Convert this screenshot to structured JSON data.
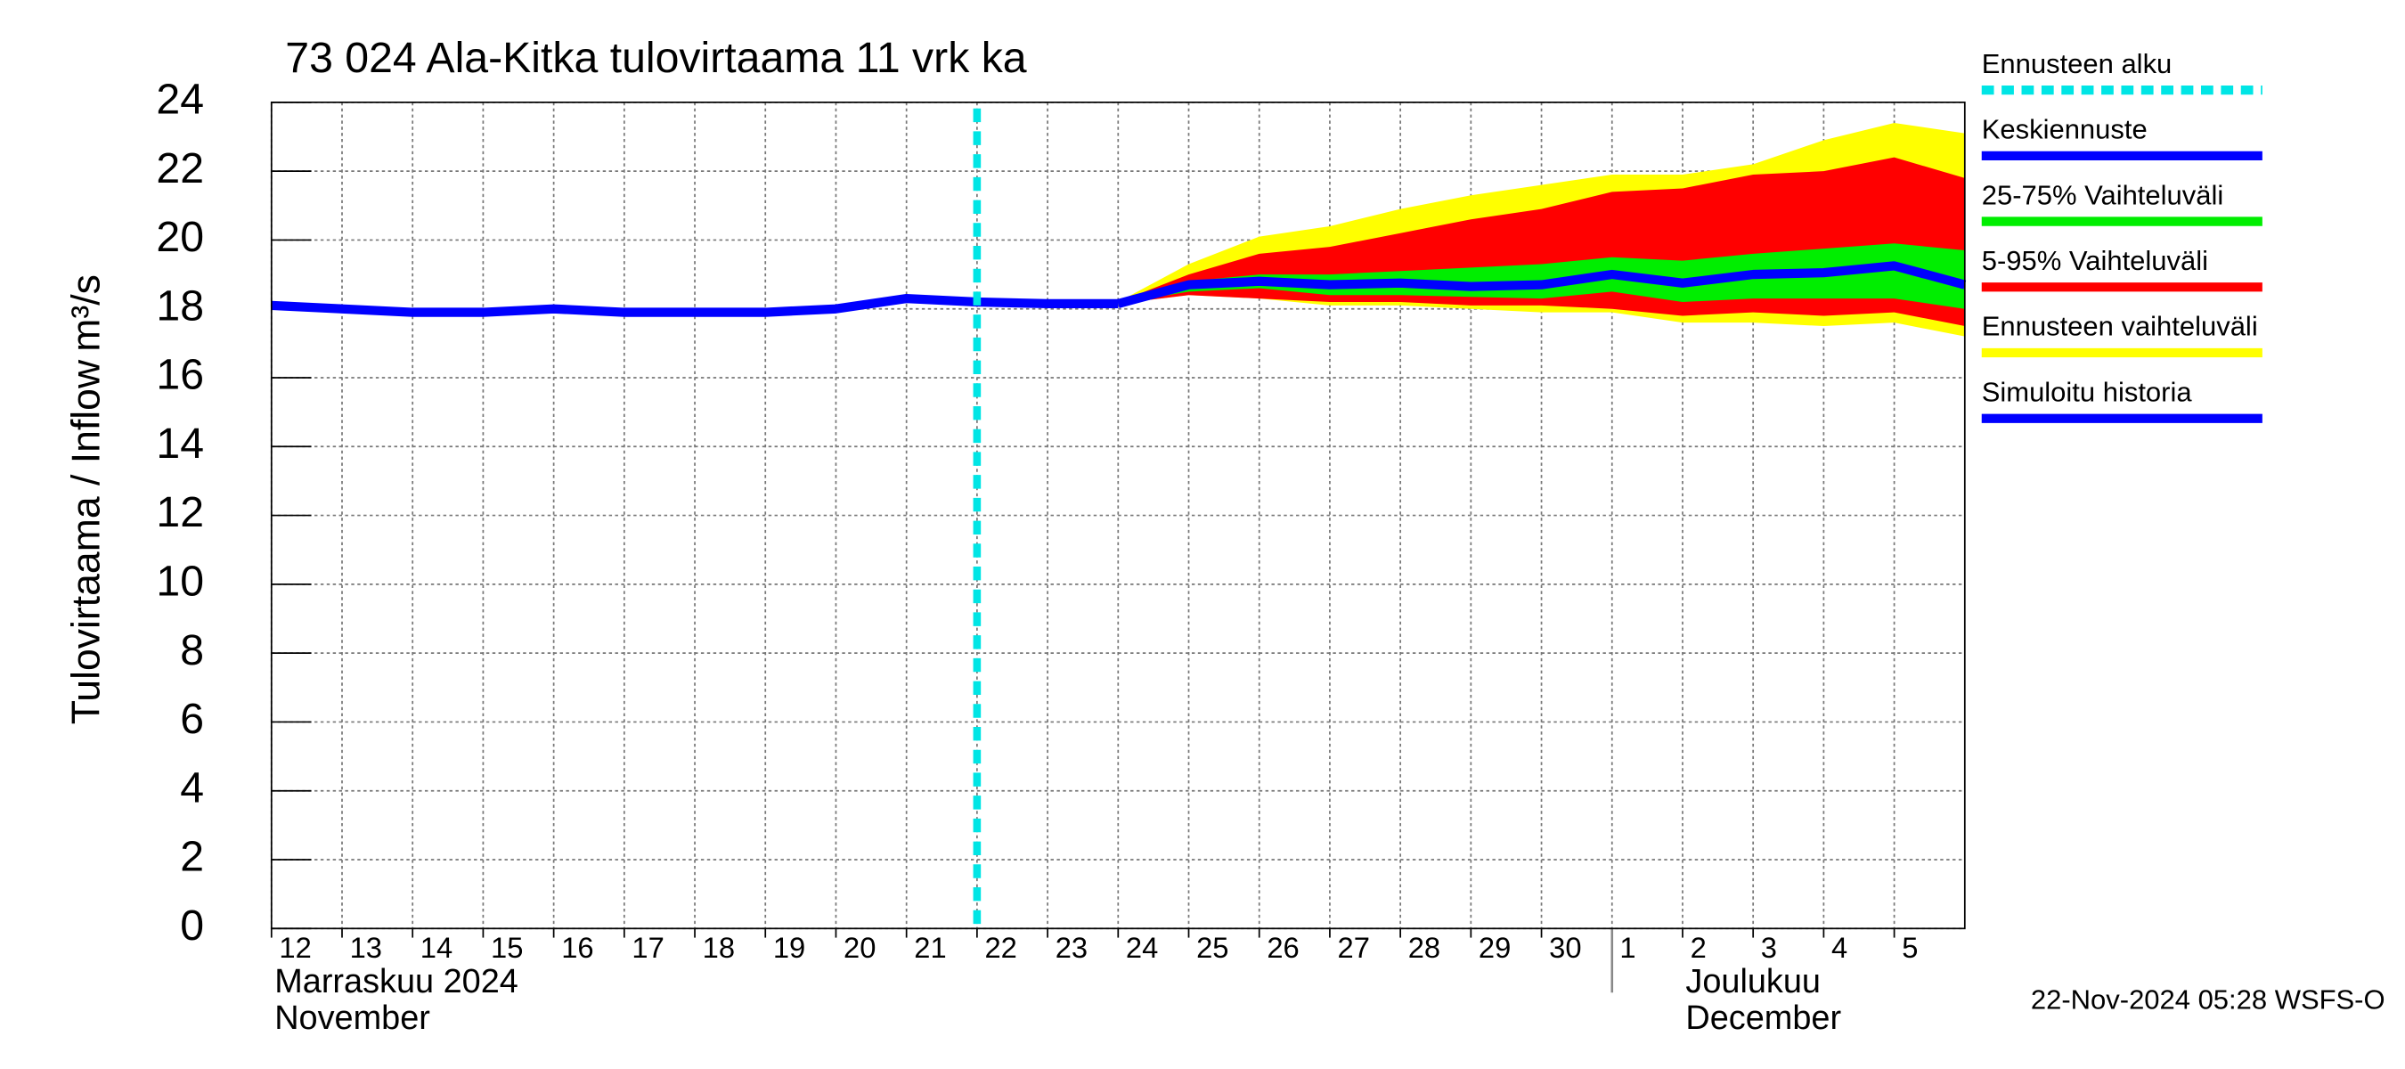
{
  "chart_data": {
    "type": "forecast-band",
    "title": "73 024 Ala-Kitka tulovirtaama 11 vrk ka",
    "y_label": "Tulovirtaama / Inflow",
    "y_unit": "m³/s",
    "month_labels": [
      "Marraskuu 2024",
      "November",
      "Joulukuu",
      "December"
    ],
    "footer": "22-Nov-2024 05:28 WSFS-O",
    "xlim": [
      0,
      24
    ],
    "xticks": [
      {
        "value": 0,
        "label": "12"
      },
      {
        "value": 1,
        "label": "13"
      },
      {
        "value": 2,
        "label": "14"
      },
      {
        "value": 3,
        "label": "15"
      },
      {
        "value": 4,
        "label": "16"
      },
      {
        "value": 5,
        "label": "17"
      },
      {
        "value": 6,
        "label": "18"
      },
      {
        "value": 7,
        "label": "19"
      },
      {
        "value": 8,
        "label": "20"
      },
      {
        "value": 9,
        "label": "21"
      },
      {
        "value": 10,
        "label": "22"
      },
      {
        "value": 11,
        "label": "23"
      },
      {
        "value": 12,
        "label": "24"
      },
      {
        "value": 13,
        "label": "25"
      },
      {
        "value": 14,
        "label": "26"
      },
      {
        "value": 15,
        "label": "27"
      },
      {
        "value": 16,
        "label": "28"
      },
      {
        "value": 17,
        "label": "29"
      },
      {
        "value": 18,
        "label": "30"
      },
      {
        "value": 19,
        "label": "1"
      },
      {
        "value": 20,
        "label": "2"
      },
      {
        "value": 21,
        "label": "3"
      },
      {
        "value": 22,
        "label": "4"
      },
      {
        "value": 23,
        "label": "5"
      }
    ],
    "month_break": 19,
    "ylim": [
      0,
      24
    ],
    "yticks": [
      0,
      2,
      4,
      6,
      8,
      10,
      12,
      14,
      16,
      18,
      20,
      22,
      24
    ],
    "grid": true,
    "forecast_start": {
      "name": "Ennusteen alku",
      "color": "#00e5e5",
      "x": 10
    },
    "bands": [
      {
        "name": "Ennusteen vaihteluväli",
        "color": "#ffff00",
        "x": [
          12,
          13,
          14,
          15,
          16,
          17,
          18,
          19,
          20,
          21,
          22,
          23,
          24
        ],
        "low": [
          18.15,
          18.4,
          18.3,
          18.1,
          18.1,
          18.0,
          17.9,
          17.9,
          17.6,
          17.6,
          17.5,
          17.6,
          17.2
        ],
        "high": [
          18.2,
          19.3,
          20.1,
          20.4,
          20.9,
          21.3,
          21.6,
          21.9,
          21.9,
          22.2,
          22.9,
          23.4,
          23.1
        ]
      },
      {
        "name": "5-95% Vaihteluväli",
        "color": "#ff0000",
        "x": [
          12,
          13,
          14,
          15,
          16,
          17,
          18,
          19,
          20,
          21,
          22,
          23,
          24
        ],
        "low": [
          18.15,
          18.4,
          18.3,
          18.2,
          18.2,
          18.1,
          18.1,
          18.0,
          17.8,
          17.9,
          17.8,
          17.9,
          17.5
        ],
        "high": [
          18.2,
          19.0,
          19.6,
          19.8,
          20.2,
          20.6,
          20.9,
          21.4,
          21.5,
          21.9,
          22.0,
          22.4,
          21.8
        ]
      },
      {
        "name": "25-75% Vaihteluväli",
        "color": "#00ee00",
        "x": [
          12,
          13,
          14,
          15,
          16,
          17,
          18,
          19,
          20,
          21,
          22,
          23,
          24
        ],
        "low": [
          18.15,
          18.5,
          18.6,
          18.4,
          18.4,
          18.35,
          18.3,
          18.5,
          18.2,
          18.3,
          18.3,
          18.3,
          18.0
        ],
        "high": [
          18.2,
          18.8,
          19.0,
          19.0,
          19.1,
          19.2,
          19.3,
          19.5,
          19.4,
          19.6,
          19.75,
          19.9,
          19.7
        ]
      }
    ],
    "series": [
      {
        "name": "Keskiennuste",
        "color": "#0000ff",
        "x": [
          12,
          13,
          14,
          15,
          16,
          17,
          18,
          19,
          20,
          21,
          22,
          23,
          24
        ],
        "values": [
          18.15,
          18.7,
          18.8,
          18.7,
          18.75,
          18.65,
          18.7,
          19.0,
          18.75,
          19.0,
          19.05,
          19.25,
          18.7
        ]
      },
      {
        "name": "Simuloitu historia",
        "color": "#0000ff",
        "x": [
          0,
          1,
          2,
          3,
          4,
          5,
          6,
          7,
          8,
          9,
          10,
          11,
          12
        ],
        "values": [
          18.1,
          18.0,
          17.9,
          17.9,
          18.0,
          17.9,
          17.9,
          17.9,
          18.0,
          18.3,
          18.2,
          18.15,
          18.15
        ]
      }
    ],
    "legend": "right"
  }
}
